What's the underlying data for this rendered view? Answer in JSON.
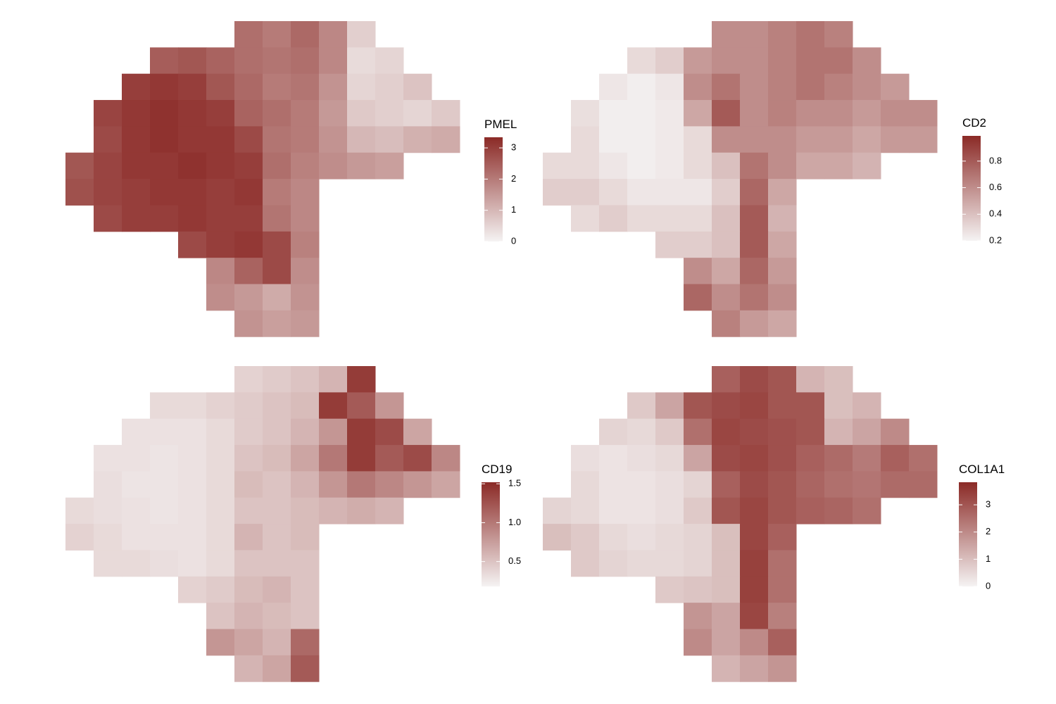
{
  "chart_data": [
    {
      "type": "heatmap",
      "title": "PMEL",
      "colors": [
        "#f5f3f3",
        "#8b2a26"
      ],
      "zlim": [
        0,
        3.34
      ],
      "zticks": [
        0,
        1,
        2,
        3
      ],
      "values": [
        [
          null,
          null,
          null,
          null,
          null,
          null,
          2.2,
          2.0,
          2.3,
          1.8,
          0.6,
          null,
          null,
          null
        ],
        [
          null,
          null,
          null,
          2.5,
          2.6,
          2.4,
          2.2,
          2.1,
          2.2,
          1.8,
          0.4,
          0.5,
          null,
          null
        ],
        [
          null,
          null,
          3.0,
          3.1,
          3.0,
          2.6,
          2.3,
          2.0,
          2.1,
          1.6,
          0.5,
          0.6,
          0.8,
          null
        ],
        [
          null,
          2.9,
          3.1,
          3.2,
          3.1,
          3.0,
          2.4,
          2.2,
          2.0,
          1.5,
          0.7,
          0.6,
          0.5,
          0.7
        ],
        [
          null,
          2.8,
          3.1,
          3.2,
          3.1,
          3.1,
          2.8,
          2.1,
          2.0,
          1.6,
          1.0,
          0.9,
          1.1,
          1.2
        ],
        [
          2.6,
          2.9,
          3.1,
          3.1,
          3.2,
          3.1,
          3.0,
          2.2,
          1.9,
          1.7,
          1.5,
          1.4,
          null,
          null
        ],
        [
          2.7,
          2.9,
          3.0,
          3.1,
          3.1,
          3.0,
          3.1,
          2.0,
          1.8,
          null,
          null,
          null,
          null,
          null
        ],
        [
          null,
          2.8,
          3.0,
          3.0,
          3.1,
          3.0,
          3.0,
          2.1,
          1.8,
          null,
          null,
          null,
          null,
          null
        ],
        [
          null,
          null,
          null,
          null,
          2.8,
          3.0,
          3.1,
          2.8,
          1.9,
          null,
          null,
          null,
          null,
          null
        ],
        [
          null,
          null,
          null,
          null,
          null,
          1.8,
          2.4,
          2.8,
          1.7,
          null,
          null,
          null,
          null,
          null
        ],
        [
          null,
          null,
          null,
          null,
          null,
          1.7,
          1.5,
          1.2,
          1.6,
          null,
          null,
          null,
          null,
          null
        ],
        [
          null,
          null,
          null,
          null,
          null,
          null,
          1.6,
          1.4,
          1.5,
          null,
          null,
          null,
          null,
          null
        ]
      ]
    },
    {
      "type": "heatmap",
      "title": "CD2",
      "colors": [
        "#f5f3f3",
        "#8b2a26"
      ],
      "zlim": [
        0.2,
        0.99
      ],
      "zticks": [
        0.2,
        0.4,
        0.6,
        0.8
      ],
      "values": [
        [
          null,
          null,
          null,
          null,
          null,
          null,
          0.6,
          0.6,
          0.65,
          0.7,
          0.65,
          null,
          null,
          null
        ],
        [
          null,
          null,
          null,
          0.3,
          0.35,
          0.55,
          0.6,
          0.6,
          0.65,
          0.7,
          0.7,
          0.6,
          null,
          null
        ],
        [
          null,
          null,
          0.25,
          0.22,
          0.25,
          0.6,
          0.7,
          0.6,
          0.65,
          0.7,
          0.65,
          0.6,
          0.55,
          null
        ],
        [
          null,
          0.28,
          0.22,
          0.22,
          0.24,
          0.5,
          0.8,
          0.6,
          0.65,
          0.6,
          0.6,
          0.55,
          0.6,
          0.6
        ],
        [
          null,
          0.3,
          0.22,
          0.22,
          0.24,
          0.3,
          0.6,
          0.6,
          0.6,
          0.55,
          0.55,
          0.5,
          0.55,
          0.55
        ],
        [
          0.3,
          0.3,
          0.25,
          0.22,
          0.24,
          0.3,
          0.4,
          0.7,
          0.6,
          0.5,
          0.5,
          0.45,
          null,
          null
        ],
        [
          0.35,
          0.35,
          0.3,
          0.25,
          0.25,
          0.25,
          0.35,
          0.75,
          0.5,
          null,
          null,
          null,
          null,
          null
        ],
        [
          null,
          0.3,
          0.35,
          0.3,
          0.3,
          0.3,
          0.4,
          0.8,
          0.45,
          null,
          null,
          null,
          null,
          null
        ],
        [
          null,
          null,
          null,
          null,
          0.35,
          0.35,
          0.4,
          0.8,
          0.5,
          null,
          null,
          null,
          null,
          null
        ],
        [
          null,
          null,
          null,
          null,
          null,
          0.6,
          0.5,
          0.75,
          0.55,
          null,
          null,
          null,
          null,
          null
        ],
        [
          null,
          null,
          null,
          null,
          null,
          0.75,
          0.6,
          0.7,
          0.6,
          null,
          null,
          null,
          null,
          null
        ],
        [
          null,
          null,
          null,
          null,
          null,
          null,
          0.65,
          0.55,
          0.5,
          null,
          null,
          null,
          null,
          null
        ]
      ]
    },
    {
      "type": "heatmap",
      "title": "CD19",
      "colors": [
        "#f5f3f3",
        "#8b2a26"
      ],
      "zlim": [
        0.18,
        1.52
      ],
      "zticks": [
        0.5,
        {
          "value": 1,
          "label": "1.0"
        },
        1.5
      ],
      "values": [
        [
          null,
          null,
          null,
          null,
          null,
          null,
          0.4,
          0.45,
          0.5,
          0.6,
          1.4,
          null,
          null,
          null
        ],
        [
          null,
          null,
          null,
          0.35,
          0.35,
          0.4,
          0.45,
          0.5,
          0.55,
          1.4,
          1.2,
          0.8,
          null,
          null
        ],
        [
          null,
          null,
          0.3,
          0.3,
          0.3,
          0.35,
          0.45,
          0.5,
          0.6,
          0.8,
          1.4,
          1.3,
          0.7,
          null
        ],
        [
          null,
          0.3,
          0.3,
          0.28,
          0.3,
          0.35,
          0.5,
          0.55,
          0.7,
          1.0,
          1.4,
          1.2,
          1.3,
          0.9
        ],
        [
          null,
          0.32,
          0.28,
          0.28,
          0.3,
          0.35,
          0.55,
          0.5,
          0.6,
          0.8,
          1.0,
          0.9,
          0.8,
          0.7
        ],
        [
          0.35,
          0.32,
          0.3,
          0.28,
          0.3,
          0.35,
          0.5,
          0.5,
          0.55,
          0.6,
          0.65,
          0.6,
          null,
          null
        ],
        [
          0.4,
          0.35,
          0.3,
          0.3,
          0.3,
          0.35,
          0.6,
          0.5,
          0.55,
          null,
          null,
          null,
          null,
          null
        ],
        [
          null,
          0.35,
          0.35,
          0.32,
          0.3,
          0.35,
          0.5,
          0.5,
          0.5,
          null,
          null,
          null,
          null,
          null
        ],
        [
          null,
          null,
          null,
          null,
          0.4,
          0.45,
          0.55,
          0.6,
          0.5,
          null,
          null,
          null,
          null,
          null
        ],
        [
          null,
          null,
          null,
          null,
          null,
          0.5,
          0.6,
          0.55,
          0.5,
          null,
          null,
          null,
          null,
          null
        ],
        [
          null,
          null,
          null,
          null,
          null,
          0.8,
          0.7,
          0.6,
          1.1,
          null,
          null,
          null,
          null,
          null
        ],
        [
          null,
          null,
          null,
          null,
          null,
          null,
          0.6,
          0.7,
          1.2,
          null,
          null,
          null,
          null,
          null
        ]
      ]
    },
    {
      "type": "heatmap",
      "title": "COL1A1",
      "colors": [
        "#f5f3f3",
        "#8b2a26"
      ],
      "zlim": [
        0,
        3.83
      ],
      "zticks": [
        0,
        1,
        2,
        3
      ],
      "values": [
        [
          null,
          null,
          null,
          null,
          null,
          null,
          2.8,
          3.2,
          3.0,
          1.2,
          1.0,
          null,
          null,
          null
        ],
        [
          null,
          null,
          null,
          0.8,
          1.5,
          3.0,
          3.2,
          3.3,
          3.0,
          3.0,
          1.0,
          1.2,
          null,
          null
        ],
        [
          null,
          null,
          0.6,
          0.5,
          0.8,
          2.5,
          3.3,
          3.2,
          3.1,
          3.0,
          1.2,
          1.5,
          2.0,
          null
        ],
        [
          null,
          0.4,
          0.3,
          0.4,
          0.5,
          1.5,
          3.2,
          3.3,
          3.1,
          2.8,
          2.6,
          2.3,
          2.8,
          2.5
        ],
        [
          null,
          0.5,
          0.3,
          0.3,
          0.4,
          0.6,
          2.8,
          3.2,
          3.0,
          2.7,
          2.5,
          2.4,
          2.6,
          2.6
        ],
        [
          0.6,
          0.5,
          0.3,
          0.3,
          0.4,
          0.8,
          3.0,
          3.3,
          3.0,
          2.8,
          2.7,
          2.5,
          null,
          null
        ],
        [
          1.0,
          0.8,
          0.5,
          0.4,
          0.5,
          0.6,
          1.0,
          3.3,
          2.8,
          null,
          null,
          null,
          null,
          null
        ],
        [
          null,
          0.8,
          0.6,
          0.5,
          0.5,
          0.6,
          1.0,
          3.4,
          2.5,
          null,
          null,
          null,
          null,
          null
        ],
        [
          null,
          null,
          null,
          null,
          0.8,
          0.9,
          1.0,
          3.4,
          2.5,
          null,
          null,
          null,
          null,
          null
        ],
        [
          null,
          null,
          null,
          null,
          null,
          1.8,
          1.5,
          3.3,
          2.2,
          null,
          null,
          null,
          null,
          null
        ],
        [
          null,
          null,
          null,
          null,
          null,
          2.0,
          1.5,
          2.0,
          2.8,
          null,
          null,
          null,
          null,
          null
        ],
        [
          null,
          null,
          null,
          null,
          null,
          null,
          1.2,
          1.5,
          1.8,
          null,
          null,
          null,
          null,
          null
        ]
      ]
    }
  ]
}
